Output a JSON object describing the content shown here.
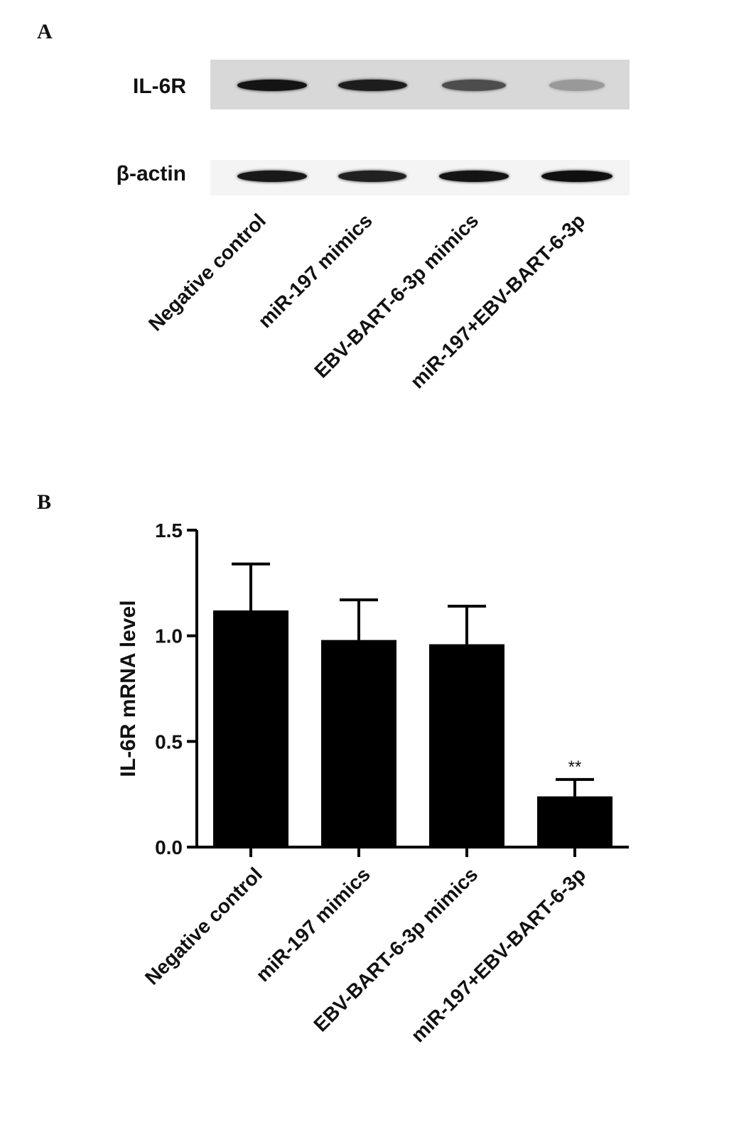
{
  "panel_a": {
    "letter": "A",
    "rows": [
      {
        "label": "IL-6R",
        "intensities": [
          0.95,
          0.9,
          0.65,
          0.25
        ]
      },
      {
        "label": "β-actin",
        "intensities": [
          0.92,
          0.88,
          0.95,
          0.97
        ]
      }
    ],
    "lane_labels": [
      "Negative control",
      "miR-197 mimics",
      "EBV-BART-6-3p mimics",
      "miR-197+EBV-BART-6-3p"
    ]
  },
  "panel_b": {
    "letter": "B"
  },
  "chart_data": {
    "type": "bar",
    "categories": [
      "Negative control",
      "miR-197 mimics",
      "EBV-BART-6-3p mimics",
      "miR-197+EBV-BART-6-3p"
    ],
    "values": [
      1.12,
      0.98,
      0.96,
      0.24
    ],
    "error": [
      0.22,
      0.19,
      0.18,
      0.08
    ],
    "annotations": [
      "",
      "",
      "",
      "**"
    ],
    "title": "",
    "xlabel": "",
    "ylabel": "IL-6R mRNA level",
    "ylim": [
      0,
      1.5
    ],
    "yticks": [
      "0.0",
      "0.5",
      "1.0",
      "1.5"
    ],
    "bar_color": "#000000"
  }
}
